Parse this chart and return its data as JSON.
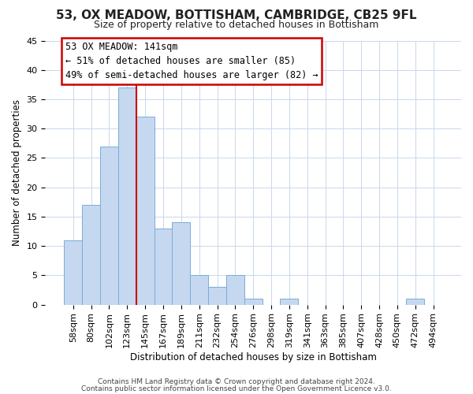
{
  "title": "53, OX MEADOW, BOTTISHAM, CAMBRIDGE, CB25 9FL",
  "subtitle": "Size of property relative to detached houses in Bottisham",
  "xlabel": "Distribution of detached houses by size in Bottisham",
  "ylabel": "Number of detached properties",
  "bar_labels": [
    "58sqm",
    "80sqm",
    "102sqm",
    "123sqm",
    "145sqm",
    "167sqm",
    "189sqm",
    "211sqm",
    "232sqm",
    "254sqm",
    "276sqm",
    "298sqm",
    "319sqm",
    "341sqm",
    "363sqm",
    "385sqm",
    "407sqm",
    "428sqm",
    "450sqm",
    "472sqm",
    "494sqm"
  ],
  "bar_values": [
    11,
    17,
    27,
    37,
    32,
    13,
    14,
    5,
    3,
    5,
    1,
    0,
    1,
    0,
    0,
    0,
    0,
    0,
    0,
    1,
    0
  ],
  "bar_color": "#c5d8f0",
  "bar_edge_color": "#7aadd4",
  "vline_color": "#cc0000",
  "vline_x": 3.5,
  "ylim": [
    0,
    45
  ],
  "yticks": [
    0,
    5,
    10,
    15,
    20,
    25,
    30,
    35,
    40,
    45
  ],
  "annotation_line1": "53 OX MEADOW: 141sqm",
  "annotation_line2": "← 51% of detached houses are smaller (85)",
  "annotation_line3": "49% of semi-detached houses are larger (82) →",
  "footer_line1": "Contains HM Land Registry data © Crown copyright and database right 2024.",
  "footer_line2": "Contains public sector information licensed under the Open Government Licence v3.0.",
  "background_color": "#ffffff",
  "grid_color": "#c8d8ec",
  "annotation_box_color": "#cc0000",
  "title_fontsize": 11,
  "subtitle_fontsize": 9,
  "axis_label_fontsize": 8.5,
  "tick_fontsize": 8,
  "annotation_fontsize": 8.5,
  "footer_fontsize": 6.5
}
